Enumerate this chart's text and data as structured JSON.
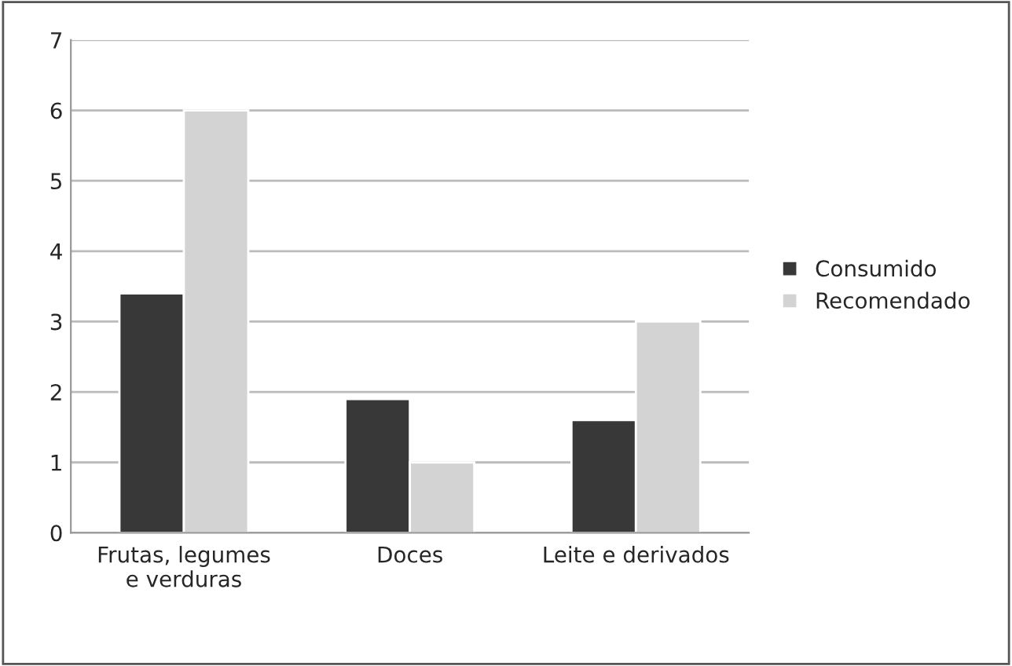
{
  "chart_data": {
    "type": "bar",
    "categories": [
      "Frutas, legumes\ne verduras",
      "Doces",
      "Leite e derivados"
    ],
    "series": [
      {
        "name": "Consumido",
        "color": "#383838",
        "values": [
          3.4,
          1.9,
          1.6
        ]
      },
      {
        "name": "Recomendado",
        "color": "#d3d3d3",
        "values": [
          6,
          1,
          3
        ]
      }
    ],
    "ylim": [
      0,
      7
    ],
    "yticks": [
      0,
      1,
      2,
      3,
      4,
      5,
      6,
      7
    ],
    "grid": "y",
    "legend": "right"
  }
}
